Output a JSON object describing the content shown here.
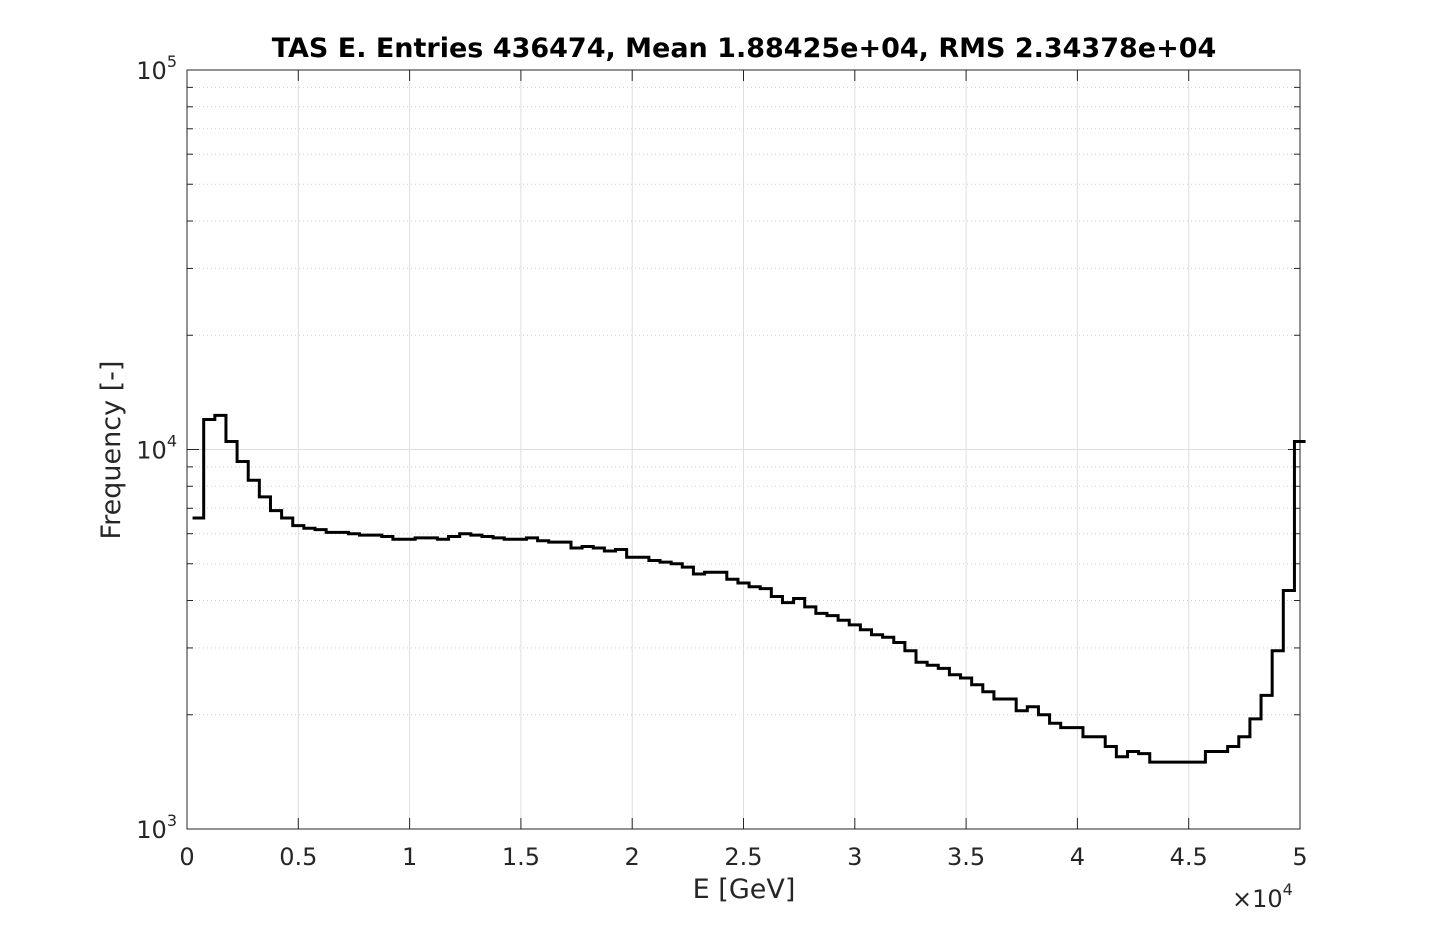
{
  "chart_data": {
    "type": "histogram",
    "title": "TAS E. Entries 436474, Mean 1.88425e+04, RMS 2.34378e+04",
    "xlabel": "E [GeV]",
    "ylabel": "Frequency [-]",
    "xscale": "linear",
    "yscale": "log",
    "xlim": [
      0,
      50000
    ],
    "ylim": [
      1000,
      100000
    ],
    "grid": true,
    "x_exponent_label": {
      "prefix": "×10",
      "power": "4"
    },
    "x_tick_values": [
      0,
      5000,
      10000,
      15000,
      20000,
      25000,
      30000,
      35000,
      40000,
      45000,
      50000
    ],
    "x_tick_labels": [
      "0",
      "0.5",
      "1",
      "1.5",
      "2",
      "2.5",
      "3",
      "3.5",
      "4",
      "4.5",
      "5"
    ],
    "y_ticks": [
      {
        "value": 1000,
        "base": "10",
        "power": "3"
      },
      {
        "value": 10000,
        "base": "10",
        "power": "4"
      },
      {
        "value": 100000,
        "base": "10",
        "power": "5"
      }
    ],
    "bin_edges": [
      250,
      750,
      1250,
      1750,
      2250,
      2750,
      3250,
      3750,
      4250,
      4750,
      5250,
      5750,
      6250,
      6750,
      7250,
      7750,
      8250,
      8750,
      9250,
      9750,
      10250,
      10750,
      11250,
      11750,
      12250,
      12750,
      13250,
      13750,
      14250,
      14750,
      15250,
      15750,
      16250,
      16750,
      17250,
      17750,
      18250,
      18750,
      19250,
      19750,
      20250,
      20750,
      21250,
      21750,
      22250,
      22750,
      23250,
      23750,
      24250,
      24750,
      25250,
      25750,
      26250,
      26750,
      27250,
      27750,
      28250,
      28750,
      29250,
      29750,
      30250,
      30750,
      31250,
      31750,
      32250,
      32750,
      33250,
      33750,
      34250,
      34750,
      35250,
      35750,
      36250,
      36750,
      37250,
      37750,
      38250,
      38750,
      39250,
      39750,
      40250,
      40750,
      41250,
      41750,
      42250,
      42750,
      43250,
      43750,
      44250,
      44750,
      45250,
      45750,
      46250,
      46750,
      47250,
      47750,
      48250,
      48750,
      49250,
      49750
    ],
    "counts": [
      6600,
      12000,
      12300,
      10500,
      9300,
      8300,
      7500,
      6900,
      6600,
      6300,
      6200,
      6150,
      6050,
      6050,
      6000,
      5950,
      5950,
      5900,
      5800,
      5800,
      5850,
      5850,
      5800,
      5900,
      6000,
      5950,
      5900,
      5850,
      5800,
      5800,
      5850,
      5750,
      5700,
      5700,
      5500,
      5550,
      5500,
      5400,
      5450,
      5200,
      5200,
      5100,
      5050,
      5000,
      4900,
      4700,
      4750,
      4750,
      4550,
      4450,
      4350,
      4300,
      4100,
      3950,
      4050,
      3850,
      3700,
      3650,
      3550,
      3450,
      3350,
      3250,
      3200,
      3100,
      2950,
      2750,
      2700,
      2650,
      2550,
      2500,
      2400,
      2300,
      2200,
      2200,
      2050,
      2100,
      2000,
      1900,
      1850,
      1850,
      1750,
      1750,
      1650,
      1550,
      1600,
      1580,
      1500,
      1500,
      1500,
      1500,
      1500,
      1600,
      1600,
      1650,
      1750,
      1950,
      2250,
      2950,
      4250,
      10500
    ]
  }
}
